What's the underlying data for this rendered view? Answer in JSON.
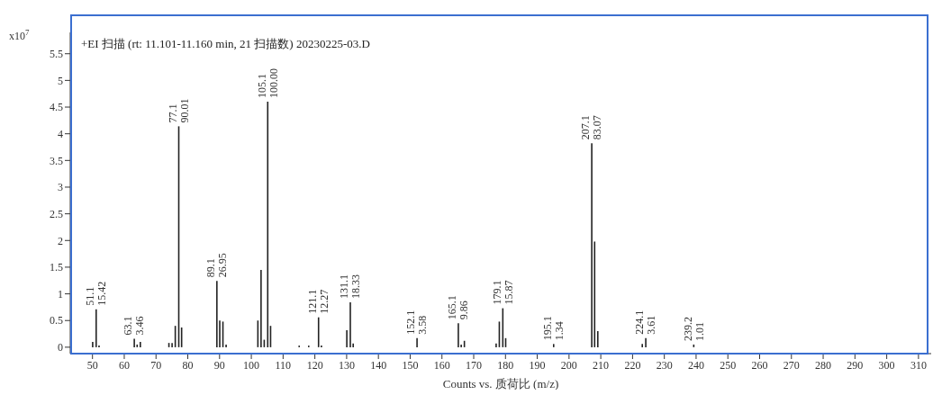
{
  "chart_data": {
    "type": "bar",
    "title": "+EI 扫描 (rt: 11.101-11.160 min, 21 扫描数) 20230225-03.D",
    "xlabel": "Counts vs. 质荷比 (m/z)",
    "ylabel": "x10$^{7}$",
    "x": [
      50,
      51.1,
      52,
      63.1,
      64,
      65,
      74,
      75,
      76,
      77.1,
      78,
      89.1,
      90,
      91,
      92,
      102,
      103,
      104,
      105.1,
      106,
      115,
      118,
      121.1,
      122,
      130,
      131.1,
      132,
      152.1,
      165.1,
      166,
      167,
      177,
      178,
      179.1,
      180,
      195.1,
      207.1,
      208,
      209,
      223,
      224.1,
      239.2
    ],
    "values": [
      0.1,
      0.71,
      0.03,
      0.16,
      0.05,
      0.1,
      0.08,
      0.08,
      0.4,
      4.14,
      0.37,
      1.24,
      0.5,
      0.48,
      0.05,
      0.5,
      1.45,
      0.14,
      4.6,
      0.4,
      0.03,
      0.03,
      0.56,
      0.03,
      0.32,
      0.84,
      0.07,
      0.17,
      0.45,
      0.05,
      0.12,
      0.07,
      0.48,
      0.73,
      0.17,
      0.06,
      3.82,
      1.98,
      0.3,
      0.06,
      0.17,
      0.05
    ],
    "color": "#222222",
    "xlim": [
      43,
      314
    ],
    "xticks": [
      50,
      60,
      70,
      80,
      90,
      100,
      110,
      120,
      130,
      140,
      150,
      160,
      170,
      180,
      190,
      200,
      210,
      220,
      230,
      240,
      250,
      260,
      270,
      280,
      290,
      300,
      310
    ],
    "ylim": [
      -0.12,
      5.9
    ],
    "yticks": [
      0,
      0.5,
      1,
      1.5,
      2,
      2.5,
      3,
      3.5,
      4,
      4.5,
      5,
      5.5
    ],
    "grid": false,
    "legend": false,
    "annotations": [
      {
        "text": "51.1\n15.42",
        "x": 51.1,
        "y": 0.71
      },
      {
        "text": "63.1\n3.46",
        "x": 63.1,
        "y": 0.16
      },
      {
        "text": "77.1\n90.01",
        "x": 77.1,
        "y": 4.14
      },
      {
        "text": "89.1\n26.95",
        "x": 89.1,
        "y": 1.24
      },
      {
        "text": "105.1\n100.00",
        "x": 105.1,
        "y": 4.6
      },
      {
        "text": "121.1\n12.27",
        "x": 121.1,
        "y": 0.56
      },
      {
        "text": "131.1\n18.33",
        "x": 131.1,
        "y": 0.84
      },
      {
        "text": "152.1\n3.58",
        "x": 152.1,
        "y": 0.17
      },
      {
        "text": "165.1\n9.86",
        "x": 165.1,
        "y": 0.45
      },
      {
        "text": "179.1\n15.87",
        "x": 179.1,
        "y": 0.73
      },
      {
        "text": "195.1\n1.34",
        "x": 195.1,
        "y": 0.06
      },
      {
        "text": "207.1\n83.07",
        "x": 207.1,
        "y": 3.82
      },
      {
        "text": "224.1\n3.61",
        "x": 224.1,
        "y": 0.17
      },
      {
        "text": "239.2\n1.01",
        "x": 239.2,
        "y": 0.05
      }
    ]
  }
}
